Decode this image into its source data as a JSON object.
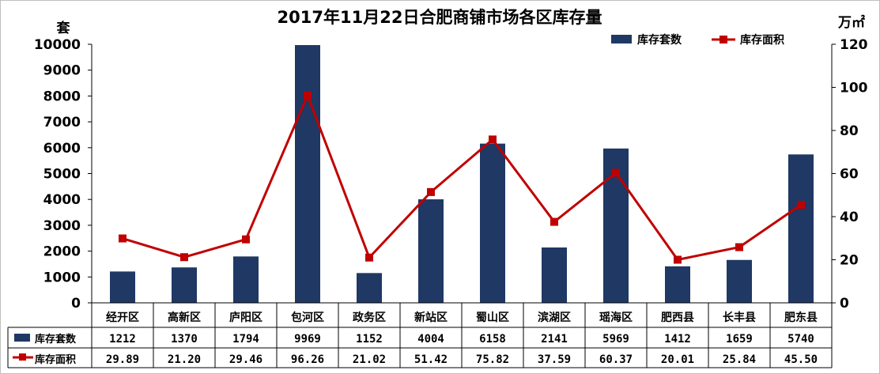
{
  "chart_data": {
    "type": "bar+line",
    "title": "2017年11月22日合肥商铺市场各区库存量",
    "categories": [
      "经开区",
      "高新区",
      "庐阳区",
      "包河区",
      "政务区",
      "新站区",
      "蜀山区",
      "滨湖区",
      "瑶海区",
      "肥西县",
      "长丰县",
      "肥东县"
    ],
    "series": [
      {
        "name": "库存套数",
        "type": "bar",
        "axis": "left",
        "color": "#1f3864",
        "values": [
          1212,
          1370,
          1794,
          9969,
          1152,
          4004,
          6158,
          2141,
          5969,
          1412,
          1659,
          5740
        ],
        "labels": [
          "1212",
          "1370",
          "1794",
          "9969",
          "1152",
          "4004",
          "6158",
          "2141",
          "5969",
          "1412",
          "1659",
          "5740"
        ]
      },
      {
        "name": "库存面积",
        "type": "line",
        "axis": "right",
        "color": "#c00000",
        "values": [
          29.89,
          21.2,
          29.46,
          96.26,
          21.02,
          51.42,
          75.82,
          37.59,
          60.37,
          20.01,
          25.84,
          45.5
        ],
        "labels": [
          "29.89",
          "21.20",
          "29.46",
          "96.26",
          "21.02",
          "51.42",
          "75.82",
          "37.59",
          "60.37",
          "20.01",
          "25.84",
          "45.50"
        ]
      }
    ],
    "y_left": {
      "unit": "套",
      "min": 0,
      "max": 10000,
      "ticks": [
        "0",
        "1000",
        "2000",
        "3000",
        "4000",
        "5000",
        "6000",
        "7000",
        "8000",
        "9000",
        "10000"
      ]
    },
    "y_right": {
      "unit": "万㎡",
      "min": 0,
      "max": 120,
      "ticks": [
        "0",
        "20",
        "40",
        "60",
        "80",
        "100",
        "120"
      ]
    },
    "legend_position": "top-right",
    "grid": false,
    "data_table": true
  }
}
